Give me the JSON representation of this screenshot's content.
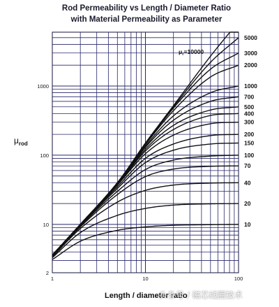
{
  "chart_data": {
    "type": "line",
    "title_lines": [
      "Rod Permeability vs Length / Diameter Ratio",
      "with Material Permeability as Parameter"
    ],
    "xlabel": "Length / diameter ratio",
    "ylabel": "μ",
    "ylabel_sub": "rod",
    "x_scale": "log",
    "y_scale": "log",
    "xlim": [
      1,
      100
    ],
    "ylim": [
      2,
      6000
    ],
    "grid": true,
    "x_tick_labels": [
      {
        "value": 1,
        "label": "1"
      },
      {
        "value": 10,
        "label": "10"
      },
      {
        "value": 100,
        "label": "100"
      }
    ],
    "y_tick_labels": [
      {
        "value": 2,
        "label": "2"
      },
      {
        "value": 10,
        "label": "10"
      },
      {
        "value": 100,
        "label": "100"
      },
      {
        "value": 1000,
        "label": "1000"
      }
    ],
    "inset_label": {
      "prefix": "μ",
      "sub": "r",
      "text": "=10000"
    },
    "series": [
      {
        "name": "10000",
        "label": "",
        "x": [
          1,
          2,
          5,
          10,
          20,
          50,
          100
        ],
        "y": [
          3.6,
          10,
          40,
          150,
          520,
          2700,
          8500
        ]
      },
      {
        "name": "5000",
        "label": "5000",
        "x": [
          1,
          2,
          5,
          10,
          20,
          50,
          100
        ],
        "y": [
          3.6,
          10,
          40,
          148,
          500,
          2200,
          5000
        ]
      },
      {
        "name": "3000",
        "label": "3000",
        "x": [
          1,
          2,
          5,
          10,
          20,
          50,
          100
        ],
        "y": [
          3.6,
          10,
          40,
          145,
          480,
          1750,
          3000
        ]
      },
      {
        "name": "2000",
        "label": "2000",
        "x": [
          1,
          2,
          5,
          10,
          20,
          50,
          100
        ],
        "y": [
          3.6,
          10,
          40,
          142,
          440,
          1350,
          2000
        ]
      },
      {
        "name": "1000",
        "label": "1000",
        "x": [
          1,
          2,
          5,
          10,
          20,
          50,
          100
        ],
        "y": [
          3.6,
          10,
          39,
          135,
          370,
          800,
          1000
        ]
      },
      {
        "name": "700",
        "label": "700",
        "x": [
          1,
          2,
          5,
          10,
          20,
          50,
          100
        ],
        "y": [
          3.6,
          10,
          38.5,
          130,
          320,
          600,
          700
        ]
      },
      {
        "name": "500",
        "label": "500",
        "x": [
          1,
          2,
          5,
          10,
          20,
          50,
          100
        ],
        "y": [
          3.6,
          10,
          38,
          122,
          270,
          450,
          500
        ]
      },
      {
        "name": "400",
        "label": "400",
        "x": [
          1,
          2,
          5,
          10,
          20,
          50,
          100
        ],
        "y": [
          3.6,
          10,
          37.5,
          115,
          235,
          375,
          400
        ]
      },
      {
        "name": "300",
        "label": "300",
        "x": [
          1,
          2,
          5,
          10,
          20,
          50,
          100
        ],
        "y": [
          3.6,
          9.9,
          37,
          105,
          195,
          285,
          300
        ]
      },
      {
        "name": "200",
        "label": "200",
        "x": [
          1,
          2,
          5,
          10,
          20,
          50,
          100
        ],
        "y": [
          3.6,
          9.8,
          35,
          90,
          145,
          192,
          200
        ]
      },
      {
        "name": "150",
        "label": "150",
        "x": [
          1,
          2,
          5,
          10,
          20,
          50,
          100
        ],
        "y": [
          3.6,
          9.7,
          33,
          78,
          118,
          145,
          150
        ]
      },
      {
        "name": "100",
        "label": "100",
        "x": [
          1,
          2,
          5,
          10,
          20,
          50,
          100
        ],
        "y": [
          3.5,
          9.5,
          30,
          62,
          85,
          97,
          100
        ]
      },
      {
        "name": "70",
        "label": "70",
        "x": [
          1,
          2,
          5,
          10,
          20,
          50,
          100
        ],
        "y": [
          3.5,
          9.2,
          27,
          49,
          63,
          69,
          70
        ]
      },
      {
        "name": "40",
        "label": "40",
        "x": [
          1,
          2,
          5,
          10,
          20,
          50,
          100
        ],
        "y": [
          3.4,
          8.7,
          21,
          31,
          37,
          39.5,
          40
        ]
      },
      {
        "name": "20",
        "label": "20",
        "x": [
          1,
          2,
          5,
          10,
          20,
          50,
          100
        ],
        "y": [
          3.3,
          7.6,
          13.5,
          17,
          19,
          19.8,
          20
        ]
      },
      {
        "name": "10",
        "label": "10",
        "x": [
          1,
          2,
          5,
          10,
          20,
          50,
          100
        ],
        "y": [
          3.1,
          5.7,
          8.2,
          9.2,
          9.7,
          9.9,
          10
        ]
      }
    ]
  },
  "watermark": "头条号 / 磁芯线圈技术"
}
